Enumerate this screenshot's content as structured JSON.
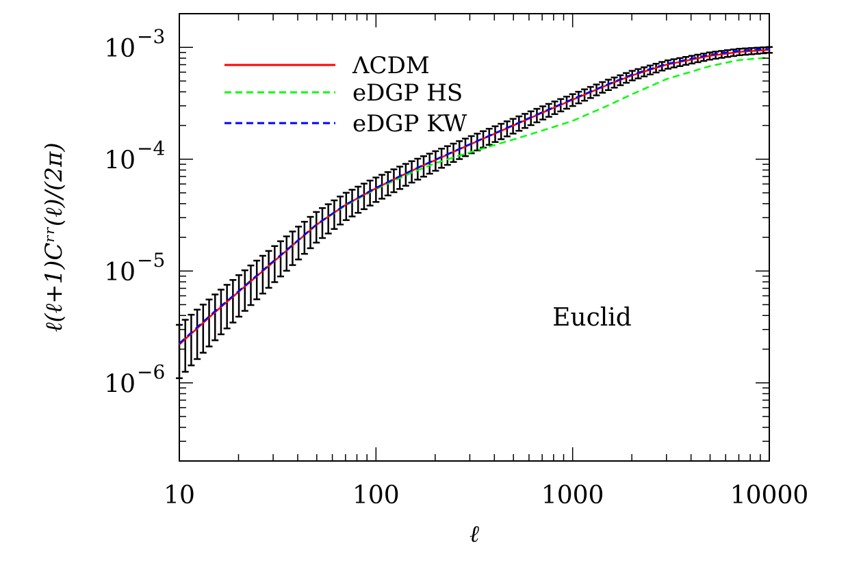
{
  "chart_data": {
    "type": "line",
    "title": "",
    "xlabel": "ℓ",
    "ylabel": "ℓ(ℓ+1)Cʳʳ(ℓ)/(2π)",
    "xscale": "log",
    "yscale": "log",
    "xlim": [
      10,
      10000
    ],
    "ylim": [
      2e-07,
      0.002
    ],
    "x_ticks": [
      {
        "value": 10,
        "label": "10"
      },
      {
        "value": 100,
        "label": "100"
      },
      {
        "value": 1000,
        "label": "1000"
      },
      {
        "value": 10000,
        "label": "10000"
      }
    ],
    "y_ticks": [
      {
        "value": 1e-06,
        "base": "10",
        "exp": "−6"
      },
      {
        "value": 1e-05,
        "base": "10",
        "exp": "−5"
      },
      {
        "value": 0.0001,
        "base": "10",
        "exp": "−4"
      },
      {
        "value": 0.001,
        "base": "10",
        "exp": "−3"
      }
    ],
    "grid": false,
    "legend_position": "top-left",
    "annotation": "Euclid",
    "x": [
      10,
      15,
      20,
      30,
      50,
      70,
      100,
      150,
      200,
      300,
      500,
      700,
      1000,
      1500,
      2000,
      3000,
      5000,
      7000,
      10000
    ],
    "series": [
      {
        "name": "ΛCDM",
        "color": "#ff0000",
        "dash": "solid",
        "values": [
          2.2e-06,
          4.2e-06,
          6.5e-06,
          1.2e-05,
          2.6e-05,
          3.9e-05,
          5.5e-05,
          7.8e-05,
          9.8e-05,
          0.000135,
          0.0002,
          0.00026,
          0.00034,
          0.00046,
          0.00056,
          0.0007,
          0.00084,
          0.00091,
          0.00095
        ]
      },
      {
        "name": "eDGP HS",
        "color": "#00ff00",
        "dash": "dashed",
        "values": [
          2.2e-06,
          4.2e-06,
          6.5e-06,
          1.2e-05,
          2.6e-05,
          3.85e-05,
          5.4e-05,
          7.5e-05,
          9.2e-05,
          0.000115,
          0.00015,
          0.00018,
          0.00022,
          0.0003,
          0.00038,
          0.00052,
          0.00068,
          0.00077,
          0.00081
        ]
      },
      {
        "name": "eDGP KW",
        "color": "#0000ff",
        "dash": "dashed",
        "values": [
          2.25e-06,
          4.3e-06,
          6.6e-06,
          1.22e-05,
          2.62e-05,
          3.92e-05,
          5.55e-05,
          7.85e-05,
          9.9e-05,
          0.000136,
          0.000202,
          0.000263,
          0.000345,
          0.000465,
          0.00057,
          0.00071,
          0.00086,
          0.00093,
          0.00097
        ]
      }
    ],
    "error_bars": {
      "color": "#000000",
      "relative_error_start": 0.5,
      "relative_error_end": 0.06
    }
  }
}
